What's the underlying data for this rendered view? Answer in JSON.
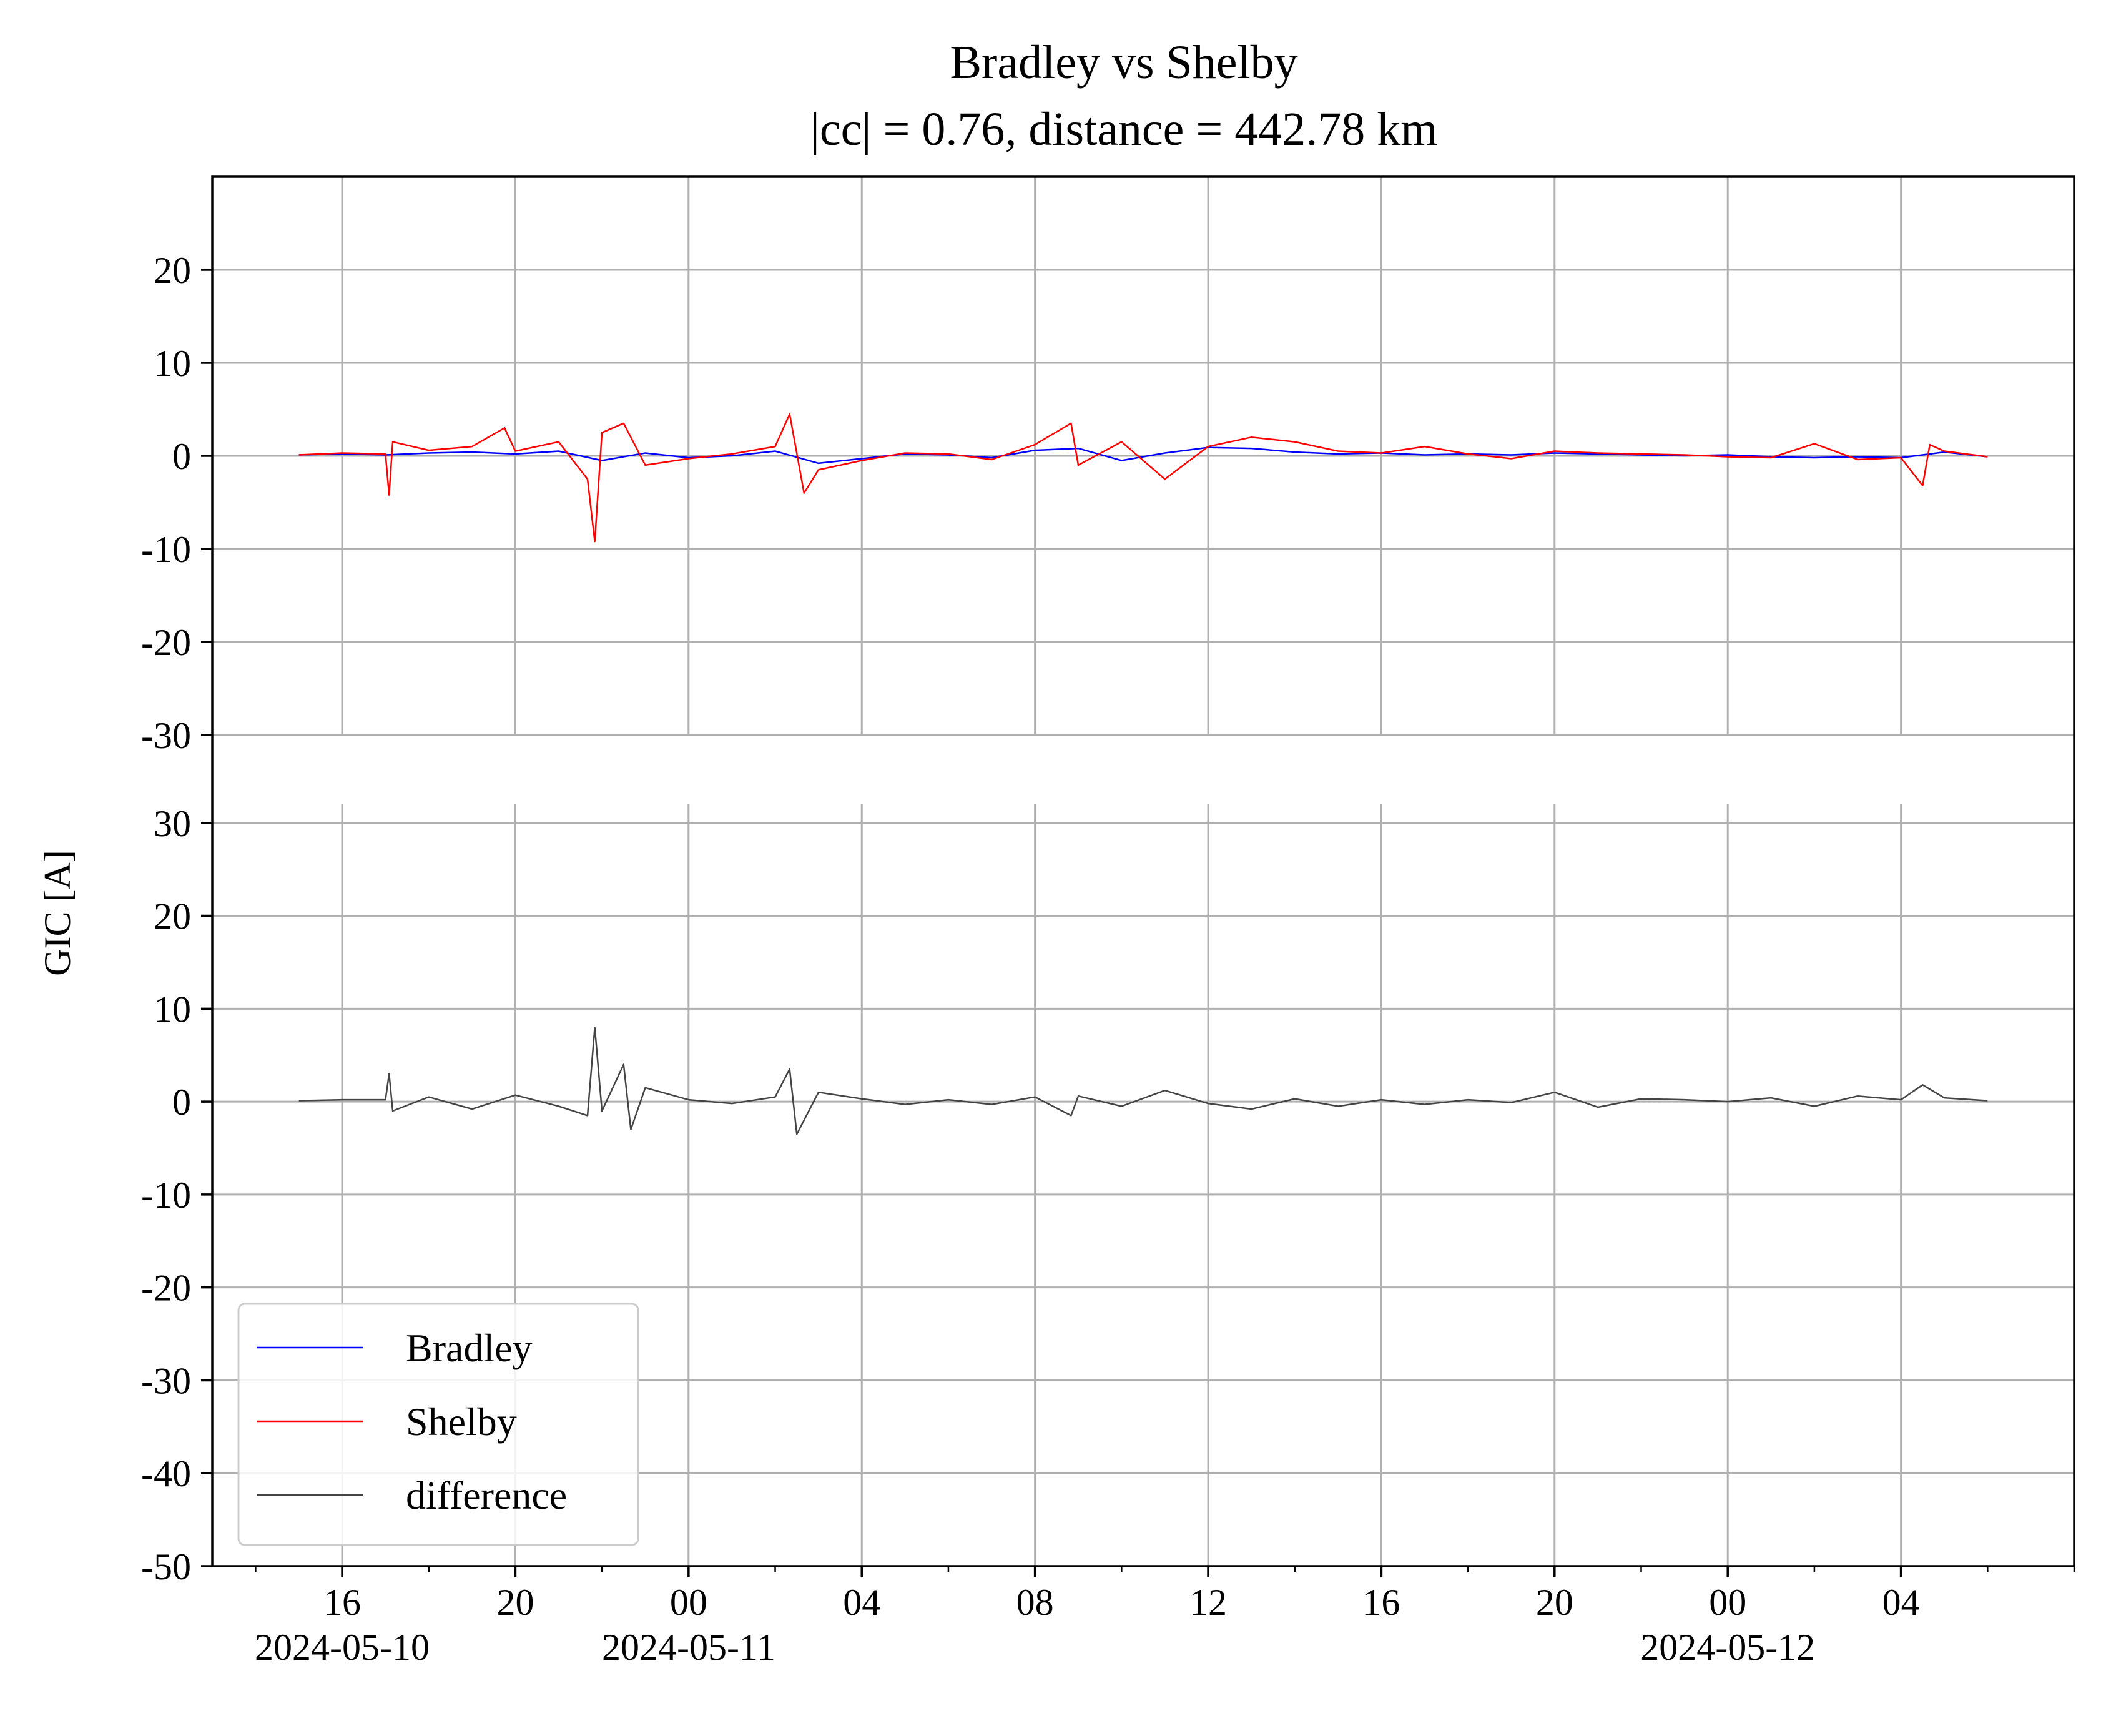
{
  "chart_data": {
    "type": "line",
    "title": "Bradley vs Shelby",
    "subtitle": "|cc| = 0.76, distance = 442.78 km",
    "ylabel": "GIC [A]",
    "xlabel": "",
    "grid": true,
    "legend_position": "lower-left",
    "x_range": [
      "2024-05-10T13:00",
      "2024-05-12T08:00"
    ],
    "x_tick_labels": [
      {
        "time": "2024-05-10T16:00",
        "label": "16",
        "date_label": "2024-05-10"
      },
      {
        "time": "2024-05-10T20:00",
        "label": "20",
        "date_label": ""
      },
      {
        "time": "2024-05-11T00:00",
        "label": "00",
        "date_label": "2024-05-11"
      },
      {
        "time": "2024-05-11T04:00",
        "label": "04",
        "date_label": ""
      },
      {
        "time": "2024-05-11T08:00",
        "label": "08",
        "date_label": ""
      },
      {
        "time": "2024-05-11T12:00",
        "label": "12",
        "date_label": ""
      },
      {
        "time": "2024-05-11T16:00",
        "label": "16",
        "date_label": ""
      },
      {
        "time": "2024-05-11T20:00",
        "label": "20",
        "date_label": ""
      },
      {
        "time": "2024-05-12T00:00",
        "label": "00",
        "date_label": "2024-05-12"
      },
      {
        "time": "2024-05-12T04:00",
        "label": "04",
        "date_label": ""
      }
    ],
    "panels": [
      {
        "name": "top",
        "ylim": [
          -30,
          30
        ],
        "yticks": [
          -30,
          -20,
          -10,
          0,
          10,
          20
        ],
        "ytick_labels": [
          "-30",
          "-20",
          "-10",
          "0",
          "10",
          "20"
        ],
        "series": [
          {
            "name": "Bradley",
            "color": "#0000ff",
            "x": [
              "2024-05-10T15:00",
              "2024-05-10T16:00",
              "2024-05-10T17:00",
              "2024-05-10T18:00",
              "2024-05-10T19:00",
              "2024-05-10T20:00",
              "2024-05-10T21:00",
              "2024-05-10T22:00",
              "2024-05-10T23:00",
              "2024-05-11T00:00",
              "2024-05-11T01:00",
              "2024-05-11T02:00",
              "2024-05-11T03:00",
              "2024-05-11T04:00",
              "2024-05-11T05:00",
              "2024-05-11T06:00",
              "2024-05-11T07:00",
              "2024-05-11T08:00",
              "2024-05-11T09:00",
              "2024-05-11T10:00",
              "2024-05-11T11:00",
              "2024-05-11T12:00",
              "2024-05-11T13:00",
              "2024-05-11T14:00",
              "2024-05-11T15:00",
              "2024-05-11T16:00",
              "2024-05-11T17:00",
              "2024-05-11T18:00",
              "2024-05-11T19:00",
              "2024-05-11T20:00",
              "2024-05-11T21:00",
              "2024-05-11T22:00",
              "2024-05-11T23:00",
              "2024-05-12T00:00",
              "2024-05-12T01:00",
              "2024-05-12T02:00",
              "2024-05-12T03:00",
              "2024-05-12T04:00",
              "2024-05-12T05:00",
              "2024-05-12T06:00"
            ],
            "values": [
              0.1,
              0.2,
              0.1,
              0.3,
              0.4,
              0.2,
              0.5,
              -0.5,
              0.3,
              -0.2,
              0.0,
              0.5,
              -0.8,
              -0.3,
              0.2,
              0.1,
              -0.2,
              0.6,
              0.8,
              -0.5,
              0.3,
              0.9,
              0.8,
              0.4,
              0.2,
              0.3,
              0.1,
              0.2,
              0.1,
              0.3,
              0.2,
              0.1,
              0.0,
              0.1,
              -0.1,
              -0.2,
              -0.1,
              -0.2,
              0.4,
              -0.1
            ]
          },
          {
            "name": "Shelby",
            "color": "#ff0000",
            "x": [
              "2024-05-10T15:00",
              "2024-05-10T16:00",
              "2024-05-10T17:00",
              "2024-05-10T17:05",
              "2024-05-10T17:10",
              "2024-05-10T18:00",
              "2024-05-10T19:00",
              "2024-05-10T19:45",
              "2024-05-10T20:00",
              "2024-05-10T21:00",
              "2024-05-10T21:40",
              "2024-05-10T21:50",
              "2024-05-10T22:00",
              "2024-05-10T22:30",
              "2024-05-10T23:00",
              "2024-05-11T00:00",
              "2024-05-11T01:00",
              "2024-05-11T02:00",
              "2024-05-11T02:20",
              "2024-05-11T02:40",
              "2024-05-11T03:00",
              "2024-05-11T04:00",
              "2024-05-11T05:00",
              "2024-05-11T06:00",
              "2024-05-11T07:00",
              "2024-05-11T08:00",
              "2024-05-11T08:50",
              "2024-05-11T09:00",
              "2024-05-11T10:00",
              "2024-05-11T11:00",
              "2024-05-11T12:00",
              "2024-05-11T13:00",
              "2024-05-11T14:00",
              "2024-05-11T15:00",
              "2024-05-11T16:00",
              "2024-05-11T17:00",
              "2024-05-11T18:00",
              "2024-05-11T19:00",
              "2024-05-11T20:00",
              "2024-05-11T21:00",
              "2024-05-11T22:00",
              "2024-05-11T23:00",
              "2024-05-12T00:00",
              "2024-05-12T01:00",
              "2024-05-12T02:00",
              "2024-05-12T03:00",
              "2024-05-12T04:00",
              "2024-05-12T04:30",
              "2024-05-12T04:40",
              "2024-05-12T05:00",
              "2024-05-12T06:00"
            ],
            "values": [
              0.1,
              0.3,
              0.2,
              -4.2,
              1.5,
              0.6,
              1.0,
              3.0,
              0.5,
              1.5,
              -2.5,
              -9.2,
              2.5,
              3.5,
              -1.0,
              -0.3,
              0.2,
              1.0,
              4.5,
              -4.0,
              -1.5,
              -0.5,
              0.3,
              0.2,
              -0.4,
              1.2,
              3.5,
              -1.0,
              1.5,
              -2.5,
              1.0,
              2.0,
              1.5,
              0.5,
              0.3,
              1.0,
              0.2,
              -0.3,
              0.5,
              0.3,
              0.2,
              0.1,
              -0.1,
              -0.2,
              1.3,
              -0.4,
              -0.2,
              -3.2,
              1.2,
              0.5,
              -0.1
            ]
          }
        ]
      },
      {
        "name": "bottom",
        "ylim": [
          -50,
          32
        ],
        "yticks": [
          -50,
          -40,
          -30,
          -20,
          -10,
          0,
          10,
          20,
          30
        ],
        "ytick_labels": [
          "-50",
          "-40",
          "-30",
          "-20",
          "-10",
          "0",
          "10",
          "20",
          "30"
        ],
        "series": [
          {
            "name": "difference",
            "color": "#444444",
            "x": [
              "2024-05-10T15:00",
              "2024-05-10T16:00",
              "2024-05-10T17:00",
              "2024-05-10T17:05",
              "2024-05-10T17:10",
              "2024-05-10T18:00",
              "2024-05-10T19:00",
              "2024-05-10T20:00",
              "2024-05-10T21:00",
              "2024-05-10T21:40",
              "2024-05-10T21:50",
              "2024-05-10T22:00",
              "2024-05-10T22:30",
              "2024-05-10T22:40",
              "2024-05-10T23:00",
              "2024-05-11T00:00",
              "2024-05-11T01:00",
              "2024-05-11T02:00",
              "2024-05-11T02:20",
              "2024-05-11T02:30",
              "2024-05-11T03:00",
              "2024-05-11T04:00",
              "2024-05-11T05:00",
              "2024-05-11T06:00",
              "2024-05-11T07:00",
              "2024-05-11T08:00",
              "2024-05-11T08:50",
              "2024-05-11T09:00",
              "2024-05-11T10:00",
              "2024-05-11T11:00",
              "2024-05-11T12:00",
              "2024-05-11T13:00",
              "2024-05-11T14:00",
              "2024-05-11T15:00",
              "2024-05-11T16:00",
              "2024-05-11T17:00",
              "2024-05-11T18:00",
              "2024-05-11T19:00",
              "2024-05-11T20:00",
              "2024-05-11T21:00",
              "2024-05-11T22:00",
              "2024-05-11T23:00",
              "2024-05-12T00:00",
              "2024-05-12T01:00",
              "2024-05-12T02:00",
              "2024-05-12T03:00",
              "2024-05-12T04:00",
              "2024-05-12T04:30",
              "2024-05-12T05:00",
              "2024-05-12T06:00"
            ],
            "values": [
              0.1,
              0.2,
              0.2,
              3.0,
              -1.0,
              0.5,
              -0.8,
              0.7,
              -0.5,
              -1.5,
              8.0,
              -1.0,
              4.0,
              -3.0,
              1.5,
              0.2,
              -0.2,
              0.5,
              3.5,
              -3.5,
              1.0,
              0.3,
              -0.3,
              0.2,
              -0.3,
              0.5,
              -1.5,
              0.6,
              -0.5,
              1.2,
              -0.2,
              -0.8,
              0.3,
              -0.5,
              0.2,
              -0.3,
              0.2,
              -0.1,
              1.0,
              -0.6,
              0.3,
              0.2,
              0.0,
              0.4,
              -0.5,
              0.6,
              0.2,
              1.8,
              0.4,
              0.1
            ]
          }
        ]
      }
    ]
  }
}
